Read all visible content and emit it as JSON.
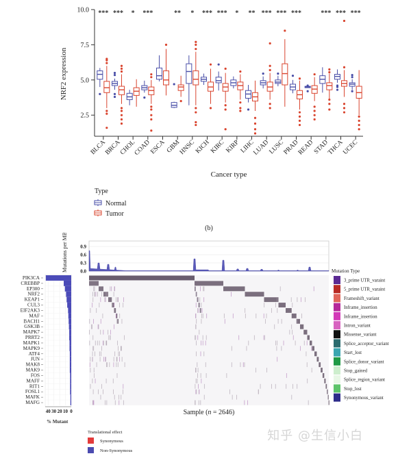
{
  "chart_data": [
    {
      "type": "box",
      "panel_label": "(b)",
      "ylabel": "NRF2 expression",
      "xlabel": "Cancer type",
      "ylim": [
        1.0,
        10.0
      ],
      "yticks": [
        "2.5",
        "5.0",
        "7.5",
        "10.0"
      ],
      "ytick_values": [
        2.5,
        5.0,
        7.5,
        10.0
      ],
      "legend": {
        "title": "Type",
        "entries": [
          {
            "name": "Normal",
            "color": "#4a4fa8"
          },
          {
            "name": "Tumor",
            "color": "#d9442e"
          }
        ]
      },
      "categories": [
        "BLCA",
        "BRCA",
        "CHOL",
        "COAD",
        "ESCA",
        "GBM",
        "HNSC",
        "KICH",
        "KIRC",
        "KIRP",
        "LIHC",
        "LUAD",
        "LUSC",
        "PRAD",
        "READ",
        "STAD",
        "THCA",
        "UCEC"
      ],
      "significance": [
        "***",
        "***",
        "*",
        "***",
        "",
        "**",
        "*",
        "***",
        "***",
        "*",
        "**",
        "***",
        "***",
        "***",
        "",
        "***",
        "***",
        "***"
      ],
      "series": [
        {
          "name": "Normal",
          "boxes": [
            {
              "q1": 5.05,
              "median": 5.4,
              "q3": 5.65,
              "wlo": 4.5,
              "whi": 5.85,
              "outliers": [
                4.0
              ]
            },
            {
              "q1": 4.6,
              "median": 4.75,
              "q3": 4.9,
              "wlo": 4.3,
              "whi": 5.1,
              "outliers": [
                3.8,
                4.0,
                5.35,
                5.5
              ]
            },
            {
              "q1": 3.6,
              "median": 3.8,
              "q3": 4.05,
              "wlo": 3.2,
              "whi": 4.3,
              "outliers": []
            },
            {
              "q1": 4.3,
              "median": 4.45,
              "q3": 4.6,
              "wlo": 4.1,
              "whi": 4.95,
              "outliers": [
                3.75
              ]
            },
            {
              "q1": 5.05,
              "median": 5.3,
              "q3": 5.85,
              "wlo": 4.9,
              "whi": 6.75,
              "outliers": []
            },
            {
              "q1": 3.05,
              "median": 3.2,
              "q3": 3.4,
              "wlo": 3.0,
              "whi": 3.45,
              "outliers": [
                4.7
              ]
            },
            {
              "q1": 4.75,
              "median": 5.6,
              "q3": 6.15,
              "wlo": 3.2,
              "whi": 6.75,
              "outliers": []
            },
            {
              "q1": 4.9,
              "median": 5.05,
              "q3": 5.2,
              "wlo": 4.65,
              "whi": 5.45,
              "outliers": []
            },
            {
              "q1": 4.8,
              "median": 4.95,
              "q3": 5.2,
              "wlo": 4.25,
              "whi": 5.6,
              "outliers": [
                6.1
              ]
            },
            {
              "q1": 4.6,
              "median": 4.8,
              "q3": 5.0,
              "wlo": 4.4,
              "whi": 5.25,
              "outliers": []
            },
            {
              "q1": 3.7,
              "median": 4.0,
              "q3": 4.25,
              "wlo": 3.4,
              "whi": 4.65,
              "outliers": [
                2.9
              ]
            },
            {
              "q1": 4.65,
              "median": 4.8,
              "q3": 4.95,
              "wlo": 4.4,
              "whi": 5.25,
              "outliers": [
                5.45
              ]
            },
            {
              "q1": 4.75,
              "median": 4.85,
              "q3": 5.0,
              "wlo": 4.55,
              "whi": 5.3,
              "outliers": [
                5.45
              ]
            },
            {
              "q1": 4.3,
              "median": 4.5,
              "q3": 4.7,
              "wlo": 4.05,
              "whi": 5.0,
              "outliers": [
                5.3
              ]
            },
            {
              "q1": 4.45,
              "median": 4.5,
              "q3": 4.55,
              "wlo": 4.45,
              "whi": 4.6,
              "outliers": [
                4.2,
                4.6
              ]
            },
            {
              "q1": 4.75,
              "median": 5.05,
              "q3": 5.3,
              "wlo": 4.1,
              "whi": 5.9,
              "outliers": []
            },
            {
              "q1": 5.05,
              "median": 5.25,
              "q3": 5.4,
              "wlo": 4.8,
              "whi": 5.75,
              "outliers": [
                4.3,
                4.5,
                4.6
              ]
            },
            {
              "q1": 4.55,
              "median": 4.7,
              "q3": 4.8,
              "wlo": 4.3,
              "whi": 5.05,
              "outliers": [
                4.2,
                5.2,
                5.35
              ]
            }
          ]
        },
        {
          "name": "Tumor",
          "boxes": [
            {
              "q1": 4.1,
              "median": 4.45,
              "q3": 4.9,
              "wlo": 3.0,
              "whi": 6.0,
              "outliers": [
                1.6,
                2.6,
                2.8,
                6.2,
                6.4,
                6.5
              ]
            },
            {
              "q1": 3.95,
              "median": 4.3,
              "q3": 4.55,
              "wlo": 3.3,
              "whi": 5.4,
              "outliers": [
                1.9,
                2.2,
                2.5,
                2.8,
                3.0,
                5.6,
                5.8,
                6.0
              ]
            },
            {
              "q1": 3.9,
              "median": 4.2,
              "q3": 4.45,
              "wlo": 3.1,
              "whi": 5.05,
              "outliers": []
            },
            {
              "q1": 3.95,
              "median": 4.25,
              "q3": 4.5,
              "wlo": 3.3,
              "whi": 5.0,
              "outliers": [
                1.4,
                2.2,
                2.5,
                2.9,
                3.1,
                5.2,
                5.4
              ]
            },
            {
              "q1": 4.65,
              "median": 5.0,
              "q3": 5.65,
              "wlo": 3.9,
              "whi": 7.2,
              "outliers": [
                7.5
              ]
            },
            {
              "q1": 4.25,
              "median": 4.5,
              "q3": 4.65,
              "wlo": 3.8,
              "whi": 5.3,
              "outliers": [
                3.5
              ]
            },
            {
              "q1": 4.65,
              "median": 5.05,
              "q3": 5.65,
              "wlo": 3.2,
              "whi": 7.0,
              "outliers": [
                1.8,
                2.0,
                2.7,
                3.0,
                7.2,
                7.5,
                7.7
              ]
            },
            {
              "q1": 4.2,
              "median": 4.5,
              "q3": 4.85,
              "wlo": 3.3,
              "whi": 5.8,
              "outliers": [
                3.0,
                6.1
              ]
            },
            {
              "q1": 4.2,
              "median": 4.5,
              "q3": 4.75,
              "wlo": 3.4,
              "whi": 5.5,
              "outliers": [
                1.5,
                2.9,
                3.2,
                5.8
              ]
            },
            {
              "q1": 4.3,
              "median": 4.6,
              "q3": 4.85,
              "wlo": 3.6,
              "whi": 5.4,
              "outliers": [
                2.8,
                3.0,
                3.4,
                5.6
              ]
            },
            {
              "q1": 3.5,
              "median": 3.8,
              "q3": 4.1,
              "wlo": 2.8,
              "whi": 4.95,
              "outliers": [
                1.2,
                1.5,
                1.9,
                2.3
              ]
            },
            {
              "q1": 4.2,
              "median": 4.5,
              "q3": 4.85,
              "wlo": 3.6,
              "whi": 5.5,
              "outliers": [
                3.0,
                3.3,
                5.7,
                6.0,
                7.6
              ]
            },
            {
              "q1": 4.65,
              "median": 5.45,
              "q3": 6.15,
              "wlo": 3.1,
              "whi": 7.9,
              "outliers": [
                8.5
              ]
            },
            {
              "q1": 3.65,
              "median": 3.95,
              "q3": 4.25,
              "wlo": 2.9,
              "whi": 4.95,
              "outliers": [
                1.8,
                2.1,
                2.4,
                2.7,
                5.1
              ]
            },
            {
              "q1": 4.05,
              "median": 4.35,
              "q3": 4.6,
              "wlo": 3.5,
              "whi": 5.2,
              "outliers": [
                2.2,
                2.5,
                2.8,
                3.1,
                5.4
              ]
            },
            {
              "q1": 4.3,
              "median": 4.6,
              "q3": 4.8,
              "wlo": 3.6,
              "whi": 5.45,
              "outliers": [
                2.9,
                3.3,
                3.6,
                5.55,
                5.75
              ]
            },
            {
              "q1": 4.55,
              "median": 4.75,
              "q3": 4.95,
              "wlo": 3.8,
              "whi": 5.7,
              "outliers": [
                2.7,
                3.0,
                3.3,
                5.9,
                9.2
              ]
            },
            {
              "q1": 3.7,
              "median": 4.1,
              "q3": 4.55,
              "wlo": 2.5,
              "whi": 5.7,
              "outliers": [
                1.5,
                1.8,
                2.1,
                2.4
              ]
            }
          ]
        }
      ]
    },
    {
      "type": "oncoplot",
      "xlabel": "Sample (n = 2646)",
      "xlabel_prefix": "Sample (",
      "xlabel_n": "n",
      "xlabel_suffix": " = 2646)",
      "tmb": {
        "ylabel": "Mutations per MB",
        "yticks": [
          "0.0",
          "0.3",
          "0.6",
          "0.9"
        ],
        "ytick_values": [
          0.0,
          0.3,
          0.6,
          0.9
        ],
        "ylim": [
          0,
          1.1
        ]
      },
      "genes": [
        "PIK3CA",
        "CREBBP",
        "EP300",
        "NRF2",
        "KEAP1",
        "CUL3",
        "EIF2AK3",
        "MAF",
        "BACH1",
        "GSK3B",
        "MAPK7",
        "PRRT2",
        "MAPK1",
        "MAPK9",
        "ATF4",
        "JUN",
        "MAK8",
        "MAK9",
        "FOS",
        "MAFF",
        "RIT1",
        "FOSL1",
        "MAFK",
        "MAFG"
      ],
      "percent_mutant": [
        44,
        13,
        11,
        9,
        8,
        7,
        5.5,
        5,
        4.5,
        4,
        3.5,
        3.5,
        3,
        3,
        2.5,
        2.5,
        2.5,
        2.5,
        2,
        2,
        2,
        2,
        1.5,
        1.5
      ],
      "pct_axis": {
        "label": "% Mutant",
        "ticks": [
          "40",
          "30",
          "20",
          "10",
          "0"
        ],
        "tick_values": [
          40,
          30,
          20,
          10,
          0
        ],
        "xlim": [
          45,
          0
        ]
      },
      "mutation_type_legend": {
        "title": "Mutation Type",
        "entries": [
          {
            "name": "3_prime UTR_varaint",
            "color": "#5b2a93"
          },
          {
            "name": "5_prime UTR_varaint",
            "color": "#b82a24"
          },
          {
            "name": "Frameshift_variant",
            "color": "#e0655a"
          },
          {
            "name": "Inframe_insertion",
            "color": "#b5289a"
          },
          {
            "name": "Inframe_insertion",
            "color": "#d33ab8"
          },
          {
            "name": "Intron_variant",
            "color": "#d863c0"
          },
          {
            "name": "Missense_variant",
            "color": "#111111"
          },
          {
            "name": "Splice_acceptor_variant",
            "color": "#2a6b6e"
          },
          {
            "name": "Start_lost",
            "color": "#3aa6b0"
          },
          {
            "name": "Splice_donor_variant",
            "color": "#1f9a45"
          },
          {
            "name": "Stop_gained",
            "color": "#cdeecd"
          },
          {
            "name": "Splice_region_variant",
            "color": "#e8f7e6"
          },
          {
            "name": "Stop_lost",
            "color": "#5dc46a"
          },
          {
            "name": "Synonymous_variant",
            "color": "#2d2c8a"
          }
        ]
      },
      "translational_effect_legend": {
        "title": "Translational effect",
        "entries": [
          {
            "name": "Synonymous",
            "color": "#e33b3b"
          },
          {
            "name": "Non-Synonymous",
            "color": "#4b4bb0"
          }
        ]
      }
    }
  ],
  "watermark": "知乎 @生信小白"
}
